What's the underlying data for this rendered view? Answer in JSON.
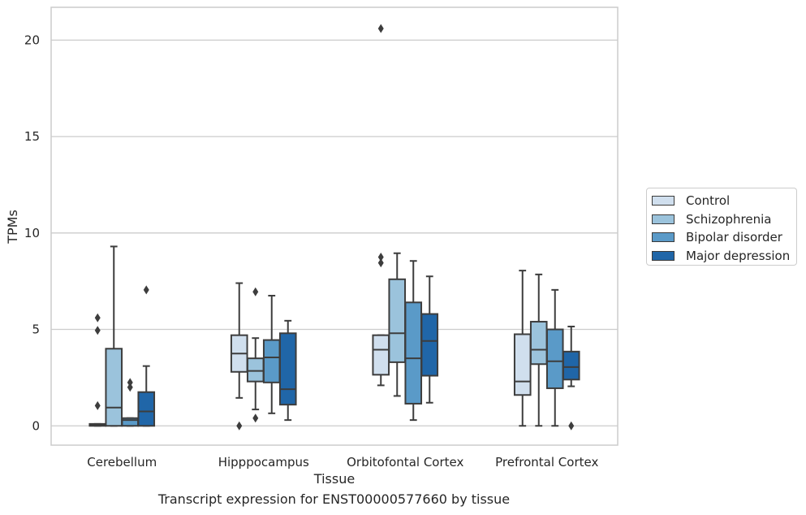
{
  "chart_data": {
    "type": "box",
    "xlabel": "Tissue",
    "ylabel": "TPMs",
    "caption": "Transcript expression for ENST00000577660 by tissue",
    "ylim": [
      -1,
      21.7
    ],
    "yticks": [
      0,
      5,
      10,
      15,
      20
    ],
    "grid": "y",
    "legend_position": "right",
    "categories": [
      "Cerebellum",
      "Hipppocampus",
      "Orbitofontal Cortex",
      "Prefrontal Cortex"
    ],
    "series": [
      {
        "name": "Control",
        "color": "#d0dfee",
        "boxes": [
          {
            "whislo": 0.0,
            "q1": 0.0,
            "med": 0.05,
            "q3": 0.1,
            "whishi": 0.1,
            "fliers": [
              5.6,
              4.95,
              1.05
            ]
          },
          {
            "whislo": 1.45,
            "q1": 2.8,
            "med": 3.75,
            "q3": 4.7,
            "whishi": 7.4,
            "fliers": [
              0.0
            ]
          },
          {
            "whislo": 2.1,
            "q1": 2.65,
            "med": 3.95,
            "q3": 4.7,
            "whishi": 4.7,
            "fliers": [
              20.6,
              8.75,
              8.45
            ]
          },
          {
            "whislo": 0.0,
            "q1": 1.6,
            "med": 2.3,
            "q3": 4.75,
            "whishi": 8.05,
            "fliers": []
          }
        ]
      },
      {
        "name": "Schizophrenia",
        "color": "#9bc3dc",
        "boxes": [
          {
            "whislo": 0.0,
            "q1": 0.0,
            "med": 0.95,
            "q3": 4.0,
            "whishi": 9.3,
            "fliers": []
          },
          {
            "whislo": 0.85,
            "q1": 2.3,
            "med": 2.85,
            "q3": 3.5,
            "whishi": 4.55,
            "fliers": [
              6.95,
              0.4
            ]
          },
          {
            "whislo": 1.55,
            "q1": 3.3,
            "med": 4.8,
            "q3": 7.6,
            "whishi": 8.95,
            "fliers": []
          },
          {
            "whislo": 0.0,
            "q1": 3.2,
            "med": 3.95,
            "q3": 5.4,
            "whishi": 7.85,
            "fliers": []
          }
        ]
      },
      {
        "name": "Bipolar disorder",
        "color": "#5a9ac8",
        "boxes": [
          {
            "whislo": 0.0,
            "q1": 0.0,
            "med": 0.3,
            "q3": 0.4,
            "whishi": 0.4,
            "fliers": [
              2.25,
              2.0
            ]
          },
          {
            "whislo": 0.65,
            "q1": 2.25,
            "med": 3.55,
            "q3": 4.45,
            "whishi": 6.75,
            "fliers": []
          },
          {
            "whislo": 0.3,
            "q1": 1.15,
            "med": 3.5,
            "q3": 6.4,
            "whishi": 8.55,
            "fliers": []
          },
          {
            "whislo": 0.0,
            "q1": 1.95,
            "med": 3.35,
            "q3": 5.0,
            "whishi": 7.05,
            "fliers": []
          }
        ]
      },
      {
        "name": "Major depression",
        "color": "#2066a8",
        "boxes": [
          {
            "whislo": 0.0,
            "q1": 0.0,
            "med": 0.75,
            "q3": 1.75,
            "whishi": 3.1,
            "fliers": [
              7.05
            ]
          },
          {
            "whislo": 0.3,
            "q1": 1.1,
            "med": 1.9,
            "q3": 4.8,
            "whishi": 5.45,
            "fliers": []
          },
          {
            "whislo": 1.2,
            "q1": 2.6,
            "med": 4.4,
            "q3": 5.8,
            "whishi": 7.75,
            "fliers": []
          },
          {
            "whislo": 2.05,
            "q1": 2.4,
            "med": 3.05,
            "q3": 3.85,
            "whishi": 5.15,
            "fliers": [
              0.0
            ]
          }
        ]
      }
    ]
  }
}
